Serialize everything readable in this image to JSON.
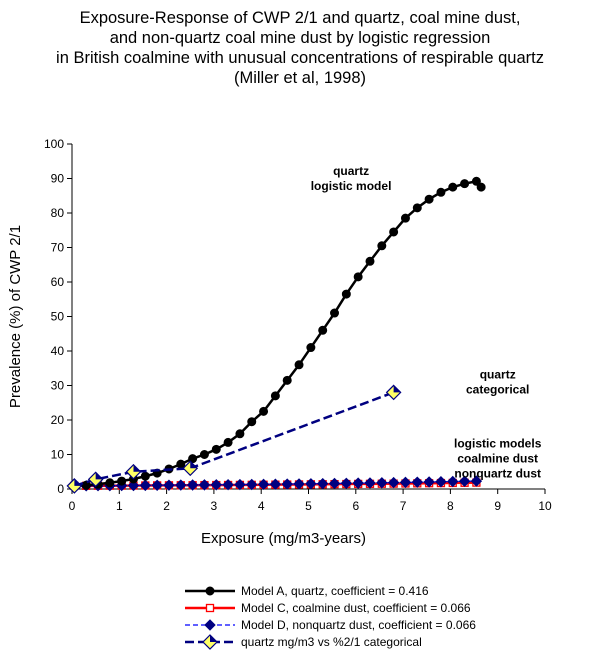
{
  "chart_data": {
    "type": "line",
    "title_lines": [
      "Exposure-Response of CWP 2/1 and quartz, coal mine dust,",
      "and non-quartz coal mine dust by logistic regression",
      "in British coalmine with unusual concentrations of respirable quartz",
      "(Miller et al, 1998)"
    ],
    "xlabel": "Exposure (mg/m3-years)",
    "ylabel": "Prevalence (%) of CWP 2/1",
    "xlim": [
      0,
      10
    ],
    "ylim": [
      0,
      100
    ],
    "x_ticks": [
      "0",
      "1",
      "2",
      "3",
      "4",
      "5",
      "6",
      "7",
      "8",
      "9",
      "10"
    ],
    "y_ticks": [
      "0",
      "10",
      "20",
      "30",
      "40",
      "50",
      "60",
      "70",
      "80",
      "90",
      "100"
    ],
    "grid": false,
    "legend_position": "bottom",
    "annotations": [
      {
        "lines": [
          "quartz",
          "logistic model"
        ],
        "x": 5.9,
        "y": 91
      },
      {
        "lines": [
          "quartz",
          "categorical"
        ],
        "x": 9.0,
        "y": 32
      },
      {
        "lines": [
          "logistic models",
          "coalmine dust",
          "nonquartz dust"
        ],
        "x": 9.0,
        "y": 12
      }
    ],
    "series": [
      {
        "name": "Model A, quartz, coefficient = 0.416",
        "color": "#000000",
        "marker": "circle",
        "x": [
          0.05,
          0.3,
          0.55,
          0.8,
          1.05,
          1.3,
          1.55,
          1.8,
          2.05,
          2.3,
          2.55,
          2.8,
          3.05,
          3.3,
          3.55,
          3.8,
          4.05,
          4.3,
          4.55,
          4.8,
          5.05,
          5.3,
          5.55,
          5.8,
          6.05,
          6.3,
          6.55,
          6.8,
          7.05,
          7.3,
          7.55,
          7.8,
          8.05,
          8.3,
          8.55,
          8.65
        ],
        "values": [
          0.9,
          1.1,
          1.4,
          1.8,
          2.3,
          2.9,
          3.7,
          4.6,
          5.8,
          7.2,
          8.8,
          10.0,
          11.5,
          13.5,
          16.0,
          19.5,
          22.5,
          27.0,
          31.5,
          36.0,
          41.0,
          46.0,
          51.0,
          56.5,
          61.5,
          66.0,
          70.5,
          74.5,
          78.5,
          81.5,
          84.0,
          86.0,
          87.5,
          88.5,
          89.2,
          87.5
        ]
      },
      {
        "name": "Model C, coalmine dust, coefficient = 0.066",
        "color": "#ff0000",
        "marker": "square",
        "x": [
          0.05,
          0.3,
          0.55,
          0.8,
          1.05,
          1.3,
          1.55,
          1.8,
          2.05,
          2.3,
          2.55,
          2.8,
          3.05,
          3.3,
          3.55,
          3.8,
          4.05,
          4.3,
          4.55,
          4.8,
          5.05,
          5.3,
          5.55,
          5.8,
          6.05,
          6.3,
          6.55,
          6.8,
          7.05,
          7.3,
          7.55,
          7.8,
          8.05,
          8.3,
          8.55
        ],
        "values": [
          0.9,
          0.92,
          0.94,
          0.96,
          0.98,
          1.0,
          1.02,
          1.04,
          1.06,
          1.08,
          1.1,
          1.12,
          1.14,
          1.16,
          1.18,
          1.2,
          1.23,
          1.26,
          1.29,
          1.32,
          1.35,
          1.38,
          1.41,
          1.44,
          1.47,
          1.5,
          1.53,
          1.56,
          1.6,
          1.64,
          1.68,
          1.72,
          1.76,
          1.8,
          1.85
        ]
      },
      {
        "name": "Model D, nonquartz dust, coefficient = 0.066",
        "color": "#0000ff",
        "marker": "diamond",
        "x": [
          0.05,
          0.3,
          0.55,
          0.8,
          1.05,
          1.3,
          1.55,
          1.8,
          2.05,
          2.3,
          2.55,
          2.8,
          3.05,
          3.3,
          3.55,
          3.8,
          4.05,
          4.3,
          4.55,
          4.8,
          5.05,
          5.3,
          5.55,
          5.8,
          6.05,
          6.3,
          6.55,
          6.8,
          7.05,
          7.3,
          7.55,
          7.8,
          8.05,
          8.3,
          8.55
        ],
        "values": [
          0.9,
          0.92,
          0.95,
          0.97,
          1.0,
          1.02,
          1.05,
          1.08,
          1.1,
          1.13,
          1.16,
          1.19,
          1.22,
          1.25,
          1.28,
          1.31,
          1.35,
          1.39,
          1.43,
          1.47,
          1.51,
          1.55,
          1.6,
          1.65,
          1.7,
          1.75,
          1.8,
          1.86,
          1.92,
          1.98,
          2.04,
          2.1,
          2.17,
          2.24,
          2.3
        ]
      },
      {
        "name": "quartz mg/m3 vs %2/1 categorical",
        "color": "#000080",
        "marker": "diamond-yellow",
        "x": [
          0.05,
          0.5,
          1.3,
          2.5,
          6.8
        ],
        "values": [
          0.9,
          2.8,
          5.0,
          6.0,
          28.0
        ]
      }
    ]
  }
}
